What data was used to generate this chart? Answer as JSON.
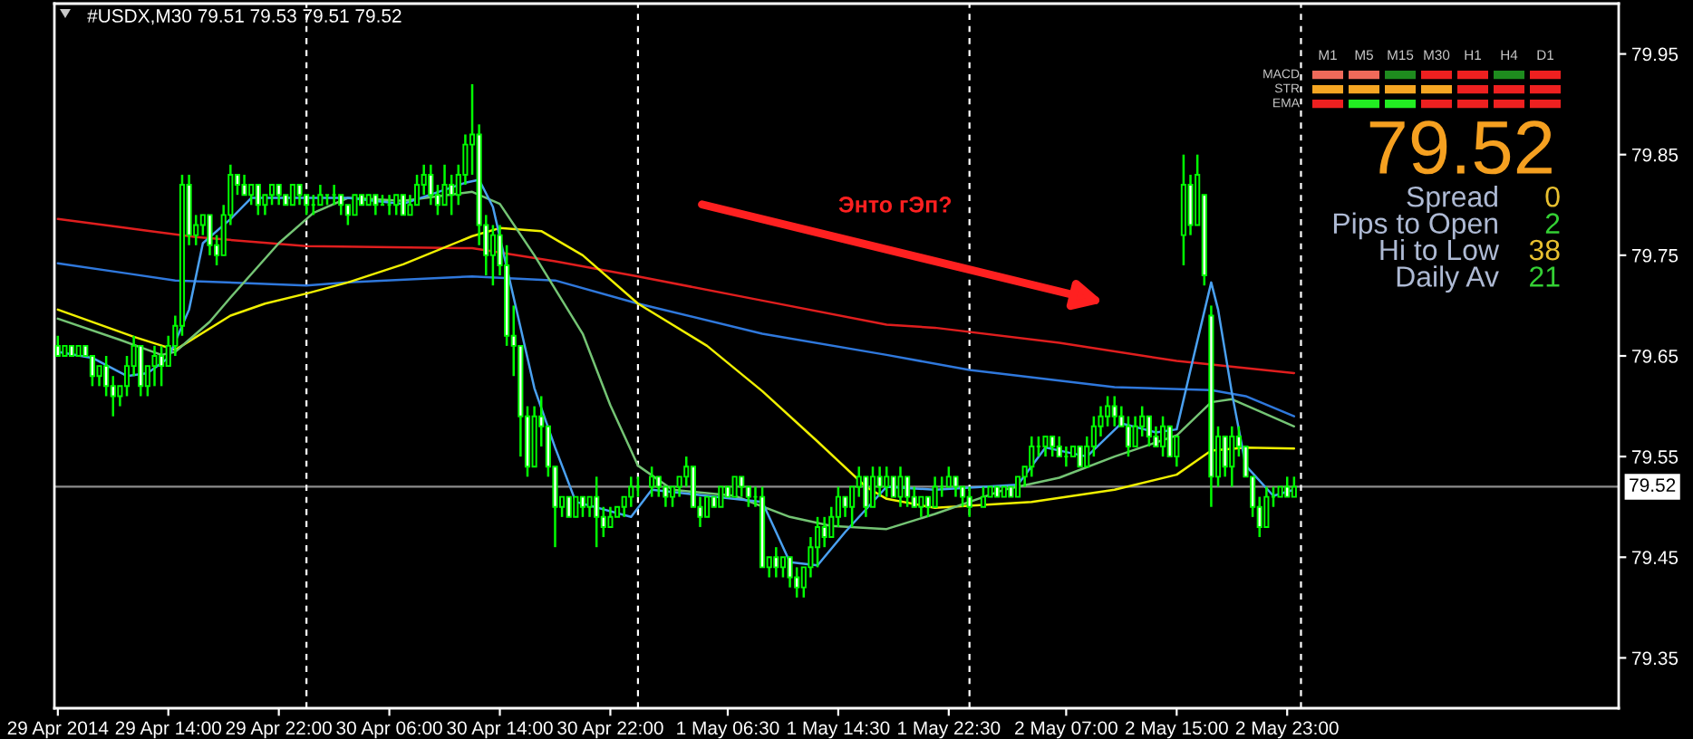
{
  "chart_data": [
    {
      "type": "candlestick",
      "title": "#USDX,M30 79.51 79.53 79.51 79.52",
      "color": "#00ff00",
      "x": [
        "2014-04-29T06:00",
        "2014-04-29T06:30",
        "2014-04-29T07:00",
        "2014-04-29T07:30",
        "2014-04-29T08:00",
        "2014-04-29T08:30",
        "2014-04-29T09:00",
        "2014-04-29T09:30",
        "2014-04-29T10:00",
        "2014-04-29T10:30",
        "2014-04-29T11:00",
        "2014-04-29T11:30",
        "2014-04-29T12:00",
        "2014-04-29T12:30",
        "2014-04-29T13:00",
        "2014-04-29T13:30",
        "2014-04-29T14:00",
        "2014-04-29T14:30",
        "2014-04-29T15:00",
        "2014-04-29T15:30",
        "2014-04-29T16:00",
        "2014-04-29T16:30",
        "2014-04-29T17:00",
        "2014-04-29T17:30",
        "2014-04-29T18:00",
        "2014-04-29T18:30",
        "2014-04-29T19:00",
        "2014-04-29T19:30",
        "2014-04-29T20:00",
        "2014-04-29T20:30",
        "2014-04-29T21:00",
        "2014-04-29T21:30",
        "2014-04-29T22:00",
        "2014-04-29T22:30",
        "2014-04-29T23:00",
        "2014-04-29T23:30",
        "2014-04-30T00:00",
        "2014-04-30T00:30",
        "2014-04-30T01:00",
        "2014-04-30T01:30",
        "2014-04-30T02:00",
        "2014-04-30T02:30",
        "2014-04-30T03:00",
        "2014-04-30T03:30",
        "2014-04-30T04:00",
        "2014-04-30T04:30",
        "2014-04-30T05:00",
        "2014-04-30T05:30",
        "2014-04-30T06:00",
        "2014-04-30T06:30",
        "2014-04-30T07:00",
        "2014-04-30T07:30",
        "2014-04-30T08:00",
        "2014-04-30T08:30",
        "2014-04-30T09:00",
        "2014-04-30T09:30",
        "2014-04-30T10:00",
        "2014-04-30T10:30",
        "2014-04-30T11:00",
        "2014-04-30T11:30",
        "2014-04-30T12:00",
        "2014-04-30T12:30",
        "2014-04-30T13:00",
        "2014-04-30T13:30",
        "2014-04-30T14:00",
        "2014-04-30T14:30",
        "2014-04-30T15:00",
        "2014-04-30T15:30",
        "2014-04-30T16:00",
        "2014-04-30T16:30",
        "2014-04-30T17:00",
        "2014-04-30T17:30",
        "2014-04-30T18:00",
        "2014-04-30T18:30",
        "2014-04-30T19:00",
        "2014-04-30T19:30",
        "2014-04-30T20:00",
        "2014-04-30T20:30",
        "2014-04-30T21:00",
        "2014-04-30T21:30",
        "2014-04-30T22:00",
        "2014-04-30T22:30",
        "2014-04-30T23:00",
        "2014-04-30T23:30",
        "2014-05-01T00:00",
        "2014-05-01T01:00",
        "2014-05-01T01:30",
        "2014-05-01T02:00",
        "2014-05-01T02:30",
        "2014-05-01T03:00",
        "2014-05-01T03:30",
        "2014-05-01T04:00",
        "2014-05-01T04:30",
        "2014-05-01T05:00",
        "2014-05-01T05:30",
        "2014-05-01T06:00",
        "2014-05-01T06:30",
        "2014-05-01T07:00",
        "2014-05-01T07:30",
        "2014-05-01T08:00",
        "2014-05-01T08:30",
        "2014-05-01T09:00",
        "2014-05-01T09:30",
        "2014-05-01T10:00",
        "2014-05-01T10:30",
        "2014-05-01T11:00",
        "2014-05-01T11:30",
        "2014-05-01T12:00",
        "2014-05-01T12:30",
        "2014-05-01T13:00",
        "2014-05-01T13:30",
        "2014-05-01T14:00",
        "2014-05-01T14:30",
        "2014-05-01T15:00",
        "2014-05-01T15:30",
        "2014-05-01T16:00",
        "2014-05-01T16:30",
        "2014-05-01T17:00",
        "2014-05-01T17:30",
        "2014-05-01T18:00",
        "2014-05-01T18:30",
        "2014-05-01T19:00",
        "2014-05-01T19:30",
        "2014-05-01T20:00",
        "2014-05-01T20:30",
        "2014-05-01T21:00",
        "2014-05-01T21:30",
        "2014-05-01T22:00",
        "2014-05-01T22:30",
        "2014-05-01T23:00",
        "2014-05-01T23:30",
        "2014-05-02T00:00",
        "2014-05-02T01:00",
        "2014-05-02T01:30",
        "2014-05-02T02:00",
        "2014-05-02T02:30",
        "2014-05-02T03:00",
        "2014-05-02T03:30",
        "2014-05-02T04:00",
        "2014-05-02T04:30",
        "2014-05-02T05:00",
        "2014-05-02T05:30",
        "2014-05-02T06:00",
        "2014-05-02T06:30",
        "2014-05-02T07:00",
        "2014-05-02T07:30",
        "2014-05-02T08:00",
        "2014-05-02T08:30",
        "2014-05-02T09:00",
        "2014-05-02T09:30",
        "2014-05-02T10:00",
        "2014-05-02T10:30",
        "2014-05-02T11:00",
        "2014-05-02T11:30",
        "2014-05-02T12:00",
        "2014-05-02T12:30",
        "2014-05-02T13:00",
        "2014-05-02T13:30",
        "2014-05-02T14:00",
        "2014-05-02T14:30",
        "2014-05-02T15:00",
        "2014-05-02T15:30",
        "2014-05-02T16:00",
        "2014-05-02T16:30",
        "2014-05-02T17:00",
        "2014-05-02T17:30",
        "2014-05-02T18:00",
        "2014-05-02T18:30",
        "2014-05-02T19:00",
        "2014-05-02T19:30",
        "2014-05-02T20:00",
        "2014-05-02T20:30",
        "2014-05-02T21:00",
        "2014-05-02T21:30",
        "2014-05-02T22:00",
        "2014-05-02T22:30",
        "2014-05-02T23:00",
        "2014-05-02T23:30"
      ],
      "ohlc": [
        [
          79.66,
          79.67,
          79.65,
          79.65
        ],
        [
          79.65,
          79.66,
          79.65,
          79.66
        ],
        [
          79.66,
          79.66,
          79.65,
          79.65
        ],
        [
          79.65,
          79.66,
          79.65,
          79.66
        ],
        [
          79.66,
          79.66,
          79.65,
          79.65
        ],
        [
          79.65,
          79.65,
          79.62,
          79.63
        ],
        [
          79.63,
          79.64,
          79.62,
          79.64
        ],
        [
          79.64,
          79.65,
          79.61,
          79.62
        ],
        [
          79.62,
          79.63,
          79.59,
          79.61
        ],
        [
          79.61,
          79.62,
          79.6,
          79.62
        ],
        [
          79.62,
          79.65,
          79.61,
          79.64
        ],
        [
          79.64,
          79.67,
          79.63,
          79.66
        ],
        [
          79.66,
          79.66,
          79.61,
          79.62
        ],
        [
          79.62,
          79.64,
          79.61,
          79.64
        ],
        [
          79.64,
          79.66,
          79.62,
          79.65
        ],
        [
          79.65,
          79.66,
          79.62,
          79.64
        ],
        [
          79.64,
          79.67,
          79.64,
          79.66
        ],
        [
          79.66,
          79.69,
          79.65,
          79.68
        ],
        [
          79.68,
          79.83,
          79.67,
          79.82
        ],
        [
          79.82,
          79.83,
          79.76,
          79.77
        ],
        [
          79.77,
          79.79,
          79.76,
          79.78
        ],
        [
          79.78,
          79.79,
          79.77,
          79.79
        ],
        [
          79.79,
          79.79,
          79.75,
          79.76
        ],
        [
          79.76,
          79.77,
          79.74,
          79.75
        ],
        [
          79.75,
          79.8,
          79.75,
          79.79
        ],
        [
          79.79,
          79.84,
          79.78,
          79.83
        ],
        [
          79.83,
          79.83,
          79.81,
          79.82
        ],
        [
          79.82,
          79.83,
          79.81,
          79.81
        ],
        [
          79.81,
          79.82,
          79.8,
          79.82
        ],
        [
          79.82,
          79.82,
          79.79,
          79.8
        ],
        [
          79.8,
          79.81,
          79.79,
          79.81
        ],
        [
          79.81,
          79.82,
          79.8,
          79.82
        ],
        [
          79.82,
          79.82,
          79.8,
          79.81
        ],
        [
          79.81,
          79.81,
          79.8,
          79.8
        ],
        [
          79.8,
          79.82,
          79.8,
          79.82
        ],
        [
          79.82,
          79.82,
          79.8,
          79.81
        ],
        [
          79.81,
          79.81,
          79.79,
          79.8
        ],
        [
          79.8,
          79.81,
          79.79,
          79.8
        ],
        [
          79.8,
          79.82,
          79.8,
          79.81
        ],
        [
          79.81,
          79.81,
          79.8,
          79.81
        ],
        [
          79.81,
          79.82,
          79.8,
          79.81
        ],
        [
          79.81,
          79.81,
          79.79,
          79.8
        ],
        [
          79.8,
          79.8,
          79.78,
          79.79
        ],
        [
          79.79,
          79.81,
          79.79,
          79.81
        ],
        [
          79.81,
          79.81,
          79.8,
          79.8
        ],
        [
          79.8,
          79.81,
          79.8,
          79.81
        ],
        [
          79.81,
          79.81,
          79.79,
          79.8
        ],
        [
          79.8,
          79.81,
          79.8,
          79.8
        ],
        [
          79.8,
          79.81,
          79.79,
          79.8
        ],
        [
          79.8,
          79.81,
          79.79,
          79.81
        ],
        [
          79.81,
          79.81,
          79.79,
          79.79
        ],
        [
          79.79,
          79.81,
          79.79,
          79.8
        ],
        [
          79.8,
          79.83,
          79.8,
          79.82
        ],
        [
          79.82,
          79.84,
          79.81,
          79.83
        ],
        [
          79.83,
          79.84,
          79.8,
          79.81
        ],
        [
          79.81,
          79.82,
          79.79,
          79.8
        ],
        [
          79.8,
          79.84,
          79.8,
          79.82
        ],
        [
          79.82,
          79.83,
          79.79,
          79.81
        ],
        [
          79.81,
          79.84,
          79.8,
          79.83
        ],
        [
          79.83,
          79.87,
          79.82,
          79.86
        ],
        [
          79.86,
          79.92,
          79.83,
          79.87
        ],
        [
          79.87,
          79.88,
          79.76,
          79.78
        ],
        [
          79.78,
          79.79,
          79.73,
          79.75
        ],
        [
          79.75,
          79.78,
          79.72,
          79.77
        ],
        [
          79.77,
          79.78,
          79.73,
          79.74
        ],
        [
          79.74,
          79.76,
          79.66,
          79.67
        ],
        [
          79.67,
          79.7,
          79.63,
          79.66
        ],
        [
          79.66,
          79.66,
          79.55,
          79.59
        ],
        [
          79.59,
          79.6,
          79.53,
          79.54
        ],
        [
          79.54,
          79.6,
          79.54,
          79.59
        ],
        [
          79.59,
          79.61,
          79.56,
          79.58
        ],
        [
          79.58,
          79.58,
          79.53,
          79.54
        ],
        [
          79.54,
          79.54,
          79.46,
          79.5
        ],
        [
          79.5,
          79.51,
          79.49,
          79.51
        ],
        [
          79.51,
          79.51,
          79.49,
          79.49
        ],
        [
          79.49,
          79.51,
          79.49,
          79.51
        ],
        [
          79.51,
          79.51,
          79.49,
          79.5
        ],
        [
          79.5,
          79.51,
          79.49,
          79.51
        ],
        [
          79.51,
          79.53,
          79.46,
          79.49
        ],
        [
          79.49,
          79.5,
          79.47,
          79.48
        ],
        [
          79.48,
          79.5,
          79.48,
          79.49
        ],
        [
          79.49,
          79.5,
          79.49,
          79.5
        ],
        [
          79.5,
          79.51,
          79.49,
          79.51
        ],
        [
          79.51,
          79.53,
          79.5,
          79.52
        ],
        [
          79.52,
          79.53,
          79.51,
          79.52
        ],
        [
          79.52,
          79.54,
          79.51,
          79.53
        ],
        [
          79.53,
          79.53,
          79.51,
          79.52
        ],
        [
          79.52,
          79.52,
          79.5,
          79.51
        ],
        [
          79.51,
          79.52,
          79.5,
          79.52
        ],
        [
          79.52,
          79.53,
          79.51,
          79.53
        ],
        [
          79.53,
          79.55,
          79.52,
          79.54
        ],
        [
          79.54,
          79.54,
          79.5,
          79.5
        ],
        [
          79.5,
          79.51,
          79.48,
          79.49
        ],
        [
          79.49,
          79.51,
          79.49,
          79.51
        ],
        [
          79.51,
          79.51,
          79.5,
          79.5
        ],
        [
          79.5,
          79.52,
          79.5,
          79.52
        ],
        [
          79.52,
          79.52,
          79.51,
          79.51
        ],
        [
          79.51,
          79.53,
          79.51,
          79.53
        ],
        [
          79.53,
          79.53,
          79.51,
          79.52
        ],
        [
          79.52,
          79.52,
          79.5,
          79.51
        ],
        [
          79.51,
          79.52,
          79.5,
          79.51
        ],
        [
          79.51,
          79.52,
          79.44,
          79.44
        ],
        [
          79.44,
          79.45,
          79.43,
          79.45
        ],
        [
          79.45,
          79.46,
          79.43,
          79.44
        ],
        [
          79.44,
          79.45,
          79.43,
          79.45
        ],
        [
          79.45,
          79.45,
          79.42,
          79.43
        ],
        [
          79.43,
          79.44,
          79.41,
          79.42
        ],
        [
          79.42,
          79.44,
          79.41,
          79.44
        ],
        [
          79.44,
          79.47,
          79.43,
          79.46
        ],
        [
          79.46,
          79.49,
          79.44,
          79.48
        ],
        [
          79.48,
          79.49,
          79.46,
          79.47
        ],
        [
          79.47,
          79.5,
          79.47,
          79.49
        ],
        [
          79.49,
          79.52,
          79.48,
          79.51
        ],
        [
          79.51,
          79.51,
          79.49,
          79.5
        ],
        [
          79.5,
          79.52,
          79.48,
          79.52
        ],
        [
          79.52,
          79.54,
          79.51,
          79.53
        ],
        [
          79.53,
          79.53,
          79.49,
          79.5
        ],
        [
          79.5,
          79.54,
          79.5,
          79.53
        ],
        [
          79.53,
          79.54,
          79.51,
          79.52
        ],
        [
          79.52,
          79.54,
          79.51,
          79.53
        ],
        [
          79.53,
          79.53,
          79.51,
          79.51
        ],
        [
          79.51,
          79.54,
          79.5,
          79.53
        ],
        [
          79.53,
          79.53,
          79.5,
          79.51
        ],
        [
          79.51,
          79.52,
          79.5,
          79.5
        ],
        [
          79.5,
          79.51,
          79.49,
          79.51
        ],
        [
          79.51,
          79.51,
          79.49,
          79.5
        ],
        [
          79.5,
          79.53,
          79.5,
          79.52
        ],
        [
          79.52,
          79.53,
          79.51,
          79.52
        ],
        [
          79.52,
          79.54,
          79.52,
          79.53
        ],
        [
          79.53,
          79.53,
          79.51,
          79.52
        ],
        [
          79.52,
          79.52,
          79.5,
          79.51
        ],
        [
          79.51,
          79.52,
          79.49,
          79.5
        ],
        [
          79.5,
          79.52,
          79.5,
          79.51
        ],
        [
          79.51,
          79.52,
          79.51,
          79.52
        ],
        [
          79.52,
          79.52,
          79.51,
          79.51
        ],
        [
          79.51,
          79.52,
          79.51,
          79.52
        ],
        [
          79.52,
          79.52,
          79.51,
          79.51
        ],
        [
          79.51,
          79.53,
          79.51,
          79.53
        ],
        [
          79.53,
          79.54,
          79.52,
          79.54
        ],
        [
          79.54,
          79.57,
          79.53,
          79.56
        ],
        [
          79.56,
          79.57,
          79.55,
          79.56
        ],
        [
          79.56,
          79.57,
          79.55,
          79.57
        ],
        [
          79.57,
          79.57,
          79.55,
          79.56
        ],
        [
          79.56,
          79.57,
          79.55,
          79.55
        ],
        [
          79.55,
          79.56,
          79.54,
          79.55
        ],
        [
          79.55,
          79.56,
          79.55,
          79.56
        ],
        [
          79.56,
          79.56,
          79.54,
          79.54
        ],
        [
          79.54,
          79.57,
          79.54,
          79.56
        ],
        [
          79.56,
          79.59,
          79.55,
          79.58
        ],
        [
          79.58,
          79.6,
          79.57,
          79.59
        ],
        [
          79.59,
          79.61,
          79.58,
          79.6
        ],
        [
          79.6,
          79.61,
          79.58,
          79.59
        ],
        [
          79.59,
          79.6,
          79.58,
          79.58
        ],
        [
          79.58,
          79.59,
          79.55,
          79.56
        ],
        [
          79.56,
          79.59,
          79.56,
          79.58
        ],
        [
          79.58,
          79.6,
          79.57,
          79.59
        ],
        [
          79.59,
          79.59,
          79.56,
          79.57
        ],
        [
          79.57,
          79.58,
          79.56,
          79.56
        ],
        [
          79.56,
          79.59,
          79.55,
          79.58
        ],
        [
          79.58,
          79.58,
          79.55,
          79.55
        ],
        [
          79.55,
          79.57,
          79.54,
          79.57
        ],
        [
          79.77,
          79.85,
          79.74,
          79.82
        ],
        [
          79.82,
          79.83,
          79.77,
          79.78
        ],
        [
          79.78,
          79.85,
          79.78,
          79.83
        ],
        [
          79.81,
          79.81,
          79.72,
          79.73
        ],
        [
          79.69,
          79.7,
          79.5,
          79.53
        ],
        [
          79.53,
          79.58,
          79.52,
          79.57
        ],
        [
          79.57,
          79.57,
          79.53,
          79.54
        ],
        [
          79.54,
          79.58,
          79.52,
          79.57
        ],
        [
          79.57,
          79.58,
          79.55,
          79.56
        ],
        [
          79.56,
          79.56,
          79.53,
          79.53
        ],
        [
          79.53,
          79.53,
          79.49,
          79.5
        ],
        [
          79.5,
          79.51,
          79.47,
          79.48
        ],
        [
          79.48,
          79.52,
          79.48,
          79.51
        ],
        [
          79.51,
          79.52,
          79.5,
          79.51
        ],
        [
          79.51,
          79.52,
          79.51,
          79.52
        ],
        [
          79.52,
          79.53,
          79.51,
          79.51
        ],
        [
          79.51,
          79.53,
          79.51,
          79.52
        ]
      ],
      "series": [
        {
          "type": "line",
          "color": "#e01e1e",
          "x": [
            "2014-04-29T06:00",
            "2014-04-29T11:00",
            "2014-04-29T16:00",
            "2014-04-30T00:00",
            "2014-04-30T12:00",
            "2014-04-30T18:00",
            "2014-05-01T00:00",
            "2014-05-01T09:00",
            "2014-05-01T18:00",
            "2014-05-01T21:30",
            "2014-05-02T06:30",
            "2014-05-02T15:00",
            "2014-05-02T23:30"
          ],
          "values": [
            79.786,
            79.777,
            79.768,
            79.759,
            79.757,
            79.744,
            79.729,
            79.705,
            79.681,
            79.678,
            79.663,
            79.645,
            79.633
          ]
        },
        {
          "type": "line",
          "color": "#2f78dc",
          "x": [
            "2014-04-29T06:00",
            "2014-04-29T11:00",
            "2014-04-29T14:30",
            "2014-04-30T00:00",
            "2014-04-30T03:00",
            "2014-04-30T12:00",
            "2014-04-30T18:00",
            "2014-05-01T00:00",
            "2014-05-01T09:00",
            "2014-05-01T18:00",
            "2014-05-02T00:00",
            "2014-05-02T10:30",
            "2014-05-02T17:30",
            "2014-05-02T20:00",
            "2014-05-02T23:30"
          ],
          "values": [
            79.742,
            79.732,
            79.725,
            79.72,
            79.723,
            79.729,
            79.725,
            79.702,
            79.672,
            79.651,
            79.636,
            79.619,
            79.616,
            79.61,
            79.59
          ]
        },
        {
          "type": "line",
          "color": "#f0f000",
          "x": [
            "2014-04-29T06:00",
            "2014-04-29T11:30",
            "2014-04-29T14:30",
            "2014-04-29T18:30",
            "2014-04-29T21:00",
            "2014-04-30T00:00",
            "2014-04-30T03:00",
            "2014-04-30T07:00",
            "2014-04-30T12:00",
            "2014-04-30T14:00",
            "2014-04-30T17:00",
            "2014-04-30T20:00",
            "2014-05-01T00:00",
            "2014-05-01T05:00",
            "2014-05-01T09:00",
            "2014-05-01T13:00",
            "2014-05-01T16:30",
            "2014-05-01T18:00",
            "2014-05-01T21:30",
            "2014-05-02T04:30",
            "2014-05-02T10:30",
            "2014-05-02T15:00",
            "2014-05-02T17:30",
            "2014-05-02T20:00",
            "2014-05-02T23:30"
          ],
          "values": [
            79.696,
            79.669,
            79.656,
            79.69,
            79.702,
            79.712,
            79.723,
            79.741,
            79.769,
            79.777,
            79.774,
            79.75,
            79.702,
            79.66,
            79.615,
            79.565,
            79.52,
            79.508,
            79.499,
            79.505,
            79.517,
            79.532,
            79.556,
            79.559,
            79.558
          ]
        },
        {
          "type": "line",
          "color": "#74c474",
          "x": [
            "2014-04-29T06:00",
            "2014-04-29T10:30",
            "2014-04-29T13:30",
            "2014-04-29T14:30",
            "2014-04-29T17:00",
            "2014-04-29T18:30",
            "2014-04-29T22:00",
            "2014-04-30T00:30",
            "2014-04-30T03:00",
            "2014-04-30T07:00",
            "2014-04-30T12:00",
            "2014-04-30T14:00",
            "2014-04-30T16:30",
            "2014-04-30T20:00",
            "2014-04-30T22:00",
            "2014-05-01T00:00",
            "2014-05-01T02:30",
            "2014-05-01T07:00",
            "2014-05-01T11:00",
            "2014-05-01T14:00",
            "2014-05-01T18:00",
            "2014-05-01T21:30",
            "2014-05-02T02:30",
            "2014-05-02T06:30",
            "2014-05-02T10:30",
            "2014-05-02T15:00",
            "2014-05-02T17:30",
            "2014-05-02T19:00",
            "2014-05-02T21:00",
            "2014-05-02T23:30"
          ],
          "values": [
            79.687,
            79.666,
            79.651,
            79.654,
            79.684,
            79.708,
            79.762,
            79.792,
            79.807,
            79.804,
            79.813,
            79.801,
            79.75,
            79.672,
            79.601,
            79.541,
            79.517,
            79.511,
            79.49,
            79.481,
            79.478,
            79.493,
            79.517,
            79.529,
            79.55,
            79.571,
            79.604,
            79.607,
            79.595,
            79.58
          ]
        },
        {
          "type": "line",
          "color": "#4aa0f0",
          "x": [
            "2014-04-29T06:00",
            "2014-04-29T08:30",
            "2014-04-29T11:00",
            "2014-04-29T12:30",
            "2014-04-29T14:00",
            "2014-04-29T15:30",
            "2014-04-29T16:30",
            "2014-04-29T18:30",
            "2014-04-29T20:00",
            "2014-04-30T03:00",
            "2014-04-30T07:00",
            "2014-04-30T11:30",
            "2014-04-30T12:30",
            "2014-04-30T13:30",
            "2014-04-30T15:00",
            "2014-04-30T16:30",
            "2014-04-30T18:00",
            "2014-04-30T19:30",
            "2014-04-30T23:30",
            "2014-05-01T01:00",
            "2014-05-01T05:00",
            "2014-05-01T09:00",
            "2014-05-01T11:00",
            "2014-05-01T13:00",
            "2014-05-01T15:00",
            "2014-05-01T18:00",
            "2014-05-01T21:30",
            "2014-05-02T03:30",
            "2014-05-02T05:30",
            "2014-05-02T08:30",
            "2014-05-02T11:00",
            "2014-05-02T13:30",
            "2014-05-02T15:00",
            "2014-05-02T16:00",
            "2014-05-02T17:30",
            "2014-05-02T18:00",
            "2014-05-02T19:00",
            "2014-05-02T20:00",
            "2014-05-02T22:00",
            "2014-05-02T23:30"
          ],
          "values": [
            79.654,
            79.648,
            79.63,
            79.633,
            79.648,
            79.696,
            79.762,
            79.786,
            79.807,
            79.807,
            79.801,
            79.822,
            79.825,
            79.798,
            79.708,
            79.618,
            79.559,
            79.505,
            79.49,
            79.517,
            79.511,
            79.505,
            79.445,
            79.442,
            79.475,
            79.52,
            79.517,
            79.522,
            79.559,
            79.55,
            79.583,
            79.574,
            79.577,
            79.636,
            79.723,
            79.696,
            79.613,
            79.541,
            79.511,
            79.517
          ]
        }
      ],
      "xlim": [
        "2014-04-29T05:45",
        "2014-05-03T23:00"
      ],
      "xticks": [
        {
          "value": "2014-04-29T06:00",
          "label": "29 Apr 2014"
        },
        {
          "value": "2014-04-29T14:00",
          "label": "29 Apr 14:00"
        },
        {
          "value": "2014-04-29T22:00",
          "label": "29 Apr 22:00"
        },
        {
          "value": "2014-04-30T06:00",
          "label": "30 Apr 06:00"
        },
        {
          "value": "2014-04-30T14:00",
          "label": "30 Apr 14:00"
        },
        {
          "value": "2014-04-30T22:00",
          "label": "30 Apr 22:00"
        },
        {
          "value": "2014-05-01T06:30",
          "label": "1 May 06:30"
        },
        {
          "value": "2014-05-01T14:30",
          "label": "1 May 14:30"
        },
        {
          "value": "2014-05-01T22:30",
          "label": "1 May 22:30"
        },
        {
          "value": "2014-05-02T07:00",
          "label": "2 May 07:00"
        },
        {
          "value": "2014-05-02T15:00",
          "label": "2 May 15:00"
        },
        {
          "value": "2014-05-02T23:00",
          "label": "2 May 23:00"
        }
      ],
      "ylim": [
        79.3,
        80.0
      ],
      "yticks": [
        79.35,
        79.45,
        79.55,
        79.65,
        79.75,
        79.85,
        79.95
      ],
      "ref_lines": [
        {
          "axis": "y",
          "value": 79.52,
          "label": "79.52",
          "color": "#8c8c8c"
        },
        {
          "axis": "x",
          "value": "2014-04-30T00:00",
          "color": "#ffffff",
          "line_style": "dashed"
        },
        {
          "axis": "x",
          "value": "2014-05-01T00:00",
          "color": "#ffffff",
          "line_style": "dashed"
        },
        {
          "axis": "x",
          "value": "2014-05-02T00:00",
          "color": "#ffffff",
          "line_style": "dashed"
        },
        {
          "axis": "x",
          "value": "2014-05-03T00:00",
          "color": "#ffffff",
          "line_style": "dashed"
        }
      ],
      "annotations": [
        "Энто гЭп?"
      ]
    },
    {
      "type": "other",
      "categories": [
        "M1",
        "M5",
        "M15",
        "M30",
        "H1",
        "H4",
        "D1"
      ],
      "y_categories": [
        "MACD",
        "STR",
        "EMA"
      ],
      "colors": [
        "#f06a5a",
        "#f06a5a",
        "#1e8c1e",
        "#ee2020",
        "#ee2020",
        "#1e8c1e",
        "#ee2020",
        "#f5a623",
        "#f5a623",
        "#f5a623",
        "#f5a623",
        "#ee2020",
        "#ee2020",
        "#ee2020",
        "#ee2020",
        "#22ee22",
        "#22ee22",
        "#ee2020",
        "#ee2020",
        "#ee2020",
        "#ee2020"
      ],
      "annotations": [
        "79.52",
        "Spread",
        "0",
        "Pips to Open",
        "2",
        "Hi to Low",
        "38",
        "Daily Av",
        "21"
      ]
    }
  ]
}
